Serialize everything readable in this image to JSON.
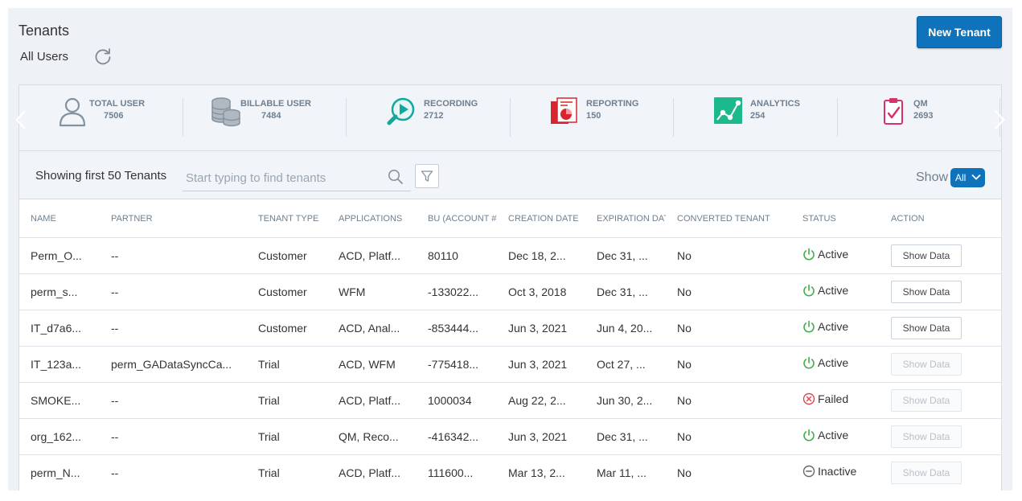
{
  "header": {
    "title": "Tenants",
    "subtitle": "All Users",
    "new_tenant_label": "New Tenant"
  },
  "stats": [
    {
      "label": "TOTAL USER",
      "value": "7506",
      "icon": "user-icon"
    },
    {
      "label": "BILLABLE USER",
      "value": "7484",
      "icon": "coins-stack-icon"
    },
    {
      "label": "RECORDING",
      "value": "2712",
      "icon": "play-search-icon"
    },
    {
      "label": "REPORTING",
      "value": "150",
      "icon": "report-pie-icon"
    },
    {
      "label": "ANALYTICS",
      "value": "254",
      "icon": "analytics-chart-icon"
    },
    {
      "label": "QM",
      "value": "2693",
      "icon": "clipboard-check-icon"
    }
  ],
  "toolbar": {
    "showing": "Showing first 50 Tenants",
    "search_placeholder": "Start typing to find tenants",
    "show_label": "Show",
    "show_value": "All"
  },
  "table": {
    "columns": [
      "NAME",
      "PARTNER",
      "TENANT TYPE",
      "APPLICATIONS",
      "BU (ACCOUNT #)",
      "CREATION DATE",
      "EXPIRATION DAT",
      "CONVERTED TENANT",
      "STATUS",
      "ACTION"
    ],
    "rows": [
      {
        "name": "Perm_O...",
        "partner": "--",
        "type": "Customer",
        "apps": "ACD, Platf...",
        "bu": "80110",
        "created": "Dec 18, 2...",
        "expires": "Dec 31, ...",
        "converted": "No",
        "status": "Active",
        "action": "Show Data"
      },
      {
        "name": "perm_s...",
        "partner": "--",
        "type": "Customer",
        "apps": "WFM",
        "bu": "-133022...",
        "created": "Oct 3, 2018",
        "expires": "Dec 31, ...",
        "converted": "No",
        "status": "Active",
        "action": "Show Data"
      },
      {
        "name": "IT_d7a6...",
        "partner": "--",
        "type": "Customer",
        "apps": "ACD, Anal...",
        "bu": "-853444...",
        "created": "Jun 3, 2021",
        "expires": "Jun 4, 20...",
        "converted": "No",
        "status": "Active",
        "action": "Show Data"
      },
      {
        "name": "IT_123a...",
        "partner": "perm_GADataSyncCa...",
        "type": "Trial",
        "apps": "ACD, WFM",
        "bu": "-775418...",
        "created": "Jun 3, 2021",
        "expires": "Oct 27, ...",
        "converted": "No",
        "status": "Active",
        "action": "Show Data"
      },
      {
        "name": "SMOKE...",
        "partner": "--",
        "type": "Trial",
        "apps": "ACD, Platf...",
        "bu": "1000034",
        "created": "Aug 22, 2...",
        "expires": "Jun 30, 2...",
        "converted": "No",
        "status": "Failed",
        "action": "Show Data"
      },
      {
        "name": "org_162...",
        "partner": "--",
        "type": "Trial",
        "apps": "QM, Reco...",
        "bu": "-416342...",
        "created": "Jun 3, 2021",
        "expires": "Dec 31, ...",
        "converted": "No",
        "status": "Active",
        "action": "Show Data"
      },
      {
        "name": "perm_N...",
        "partner": "--",
        "type": "Trial",
        "apps": "ACD, Platf...",
        "bu": "111600...",
        "created": "Mar 13, 2...",
        "expires": "Mar 11, ...",
        "converted": "No",
        "status": "Inactive",
        "action": "Show Data"
      }
    ],
    "action_enabled": [
      true,
      true,
      true,
      false,
      false,
      false,
      false
    ]
  },
  "colors": {
    "primary": "#0e73bb",
    "active": "#3fae49",
    "failed": "#e0474c",
    "inactive": "#666666",
    "recording": "#13a89e",
    "reporting": "#d7262f",
    "analytics": "#1bb98c",
    "qm": "#d6336c"
  }
}
